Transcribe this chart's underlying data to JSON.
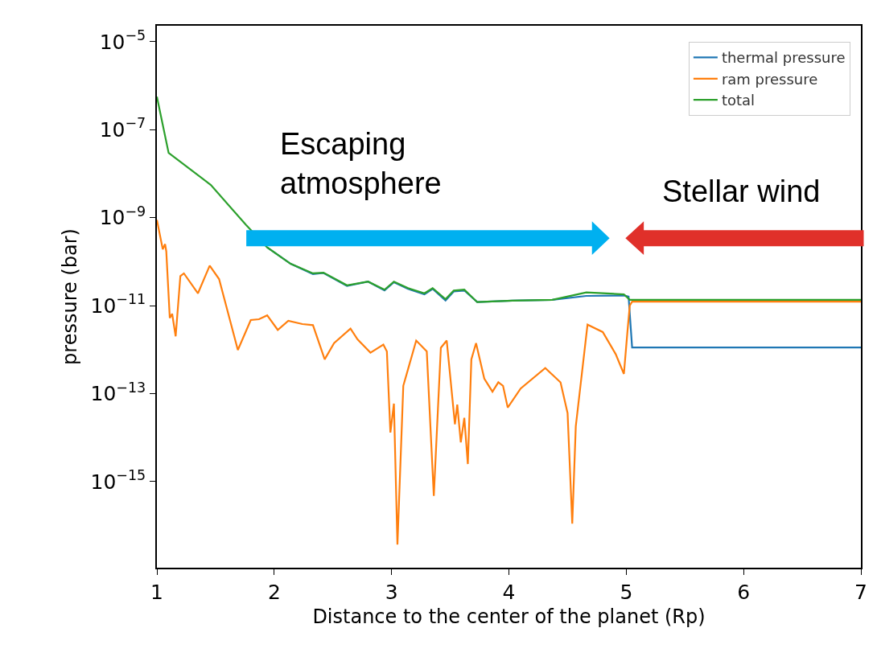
{
  "chart_data": {
    "type": "line",
    "xlabel": "Distance to the center of the planet (Rp)",
    "ylabel": "pressure (bar)",
    "log": "y",
    "grid": false,
    "legend": "top right",
    "xlim": [
      1,
      7
    ],
    "xticks": [
      1,
      2,
      3,
      4,
      5,
      6,
      7
    ],
    "ylim": [
      1.1e-17,
      2.3e-05
    ],
    "yticks": [
      {
        "value": 1e-05,
        "label": "10$^{−5}$"
      },
      {
        "value": 1e-07,
        "label": "10$^{−7}$"
      },
      {
        "value": 1e-09,
        "label": "10$^{−9}$"
      },
      {
        "value": 1e-11,
        "label": "10$^{−11}$"
      },
      {
        "value": 1e-13,
        "label": "10$^{−13}$"
      },
      {
        "value": 1e-15,
        "label": "10$^{−15}$"
      }
    ],
    "annotations": [
      "Escaping\natmosphere",
      "Stellar wind"
    ],
    "series": [
      {
        "name": "thermal pressure",
        "color": "#1f77b4",
        "x": [
          1.94,
          2.14,
          2.33,
          2.42,
          2.62,
          2.8,
          2.94,
          3.02,
          3.14,
          3.28,
          3.35,
          3.46,
          3.53,
          3.62,
          3.73,
          4.03,
          4.37,
          4.66,
          4.98,
          5.02,
          5.05,
          7.0
        ],
        "values": [
          2.1e-10,
          8.9e-11,
          5.2e-11,
          5.5e-11,
          2.8e-11,
          3.5e-11,
          2.2e-11,
          3.4e-11,
          2.4e-11,
          1.8e-11,
          2.4e-11,
          1.3e-11,
          2.1e-11,
          2.2e-11,
          1.2e-11,
          1.3e-11,
          1.35e-11,
          1.66e-11,
          1.7e-11,
          1.6e-11,
          1.12e-12,
          1.12e-12
        ]
      },
      {
        "name": "ram pressure",
        "color": "#ff7f0e",
        "x": [
          1.0,
          1.05,
          1.07,
          1.08,
          1.11,
          1.13,
          1.16,
          1.2,
          1.23,
          1.35,
          1.45,
          1.53,
          1.69,
          1.8,
          1.87,
          1.94,
          2.03,
          2.12,
          2.24,
          2.33,
          2.43,
          2.51,
          2.65,
          2.71,
          2.82,
          2.93,
          2.96,
          2.99,
          3.02,
          3.05,
          3.1,
          3.21,
          3.3,
          3.36,
          3.42,
          3.47,
          3.54,
          3.56,
          3.59,
          3.62,
          3.65,
          3.68,
          3.72,
          3.79,
          3.86,
          3.91,
          3.95,
          3.99,
          4.1,
          4.31,
          4.44,
          4.5,
          4.54,
          4.57,
          4.67,
          4.8,
          4.91,
          4.98,
          5.01,
          5.03,
          5.05,
          7.0
        ],
        "values": [
          8.9e-10,
          1.9e-10,
          2.5e-10,
          1.7e-10,
          5.2e-12,
          6.5e-12,
          2e-12,
          4.7e-11,
          5.4e-11,
          1.9e-11,
          8.1e-11,
          4e-11,
          9.8e-13,
          4.7e-12,
          4.9e-12,
          6e-12,
          2.8e-12,
          4.5e-12,
          3.8e-12,
          3.6e-12,
          6e-13,
          1.4e-12,
          3e-12,
          1.7e-12,
          8.5e-13,
          1.3e-12,
          9.1e-13,
          1.3e-14,
          5.9e-14,
          3.7e-17,
          1.5e-13,
          1.6e-12,
          9.1e-13,
          4.7e-16,
          1.1e-12,
          1.6e-12,
          2e-14,
          5.6e-14,
          7.8e-15,
          2.8e-14,
          2.5e-15,
          6e-13,
          1.4e-12,
          2.2e-13,
          1.1e-13,
          1.8e-13,
          1.5e-13,
          4.8e-14,
          1.3e-13,
          3.8e-13,
          1.8e-13,
          3.6e-14,
          1.1e-16,
          1.8e-14,
          3.7e-12,
          2.5e-12,
          7.9e-13,
          2.8e-13,
          2.5e-12,
          1e-11,
          1.23e-11,
          1.23e-11
        ]
      },
      {
        "name": "total",
        "color": "#2ca02c",
        "x": [
          1.0,
          1.1,
          1.46,
          1.76,
          1.94,
          2.14,
          2.33,
          2.42,
          2.62,
          2.8,
          2.94,
          3.02,
          3.14,
          3.28,
          3.35,
          3.46,
          3.53,
          3.62,
          3.73,
          4.03,
          4.37,
          4.66,
          4.98,
          5.03,
          7.0
        ],
        "values": [
          5.6e-07,
          2.95e-08,
          5.5e-09,
          6.8e-10,
          2.1e-10,
          8.9e-11,
          5.4e-11,
          5.6e-11,
          2.9e-11,
          3.5e-11,
          2.3e-11,
          3.5e-11,
          2.5e-11,
          1.9e-11,
          2.5e-11,
          1.4e-11,
          2.2e-11,
          2.3e-11,
          1.2e-11,
          1.3e-11,
          1.35e-11,
          2e-11,
          1.8e-11,
          1.35e-11,
          1.35e-11
        ]
      }
    ]
  }
}
